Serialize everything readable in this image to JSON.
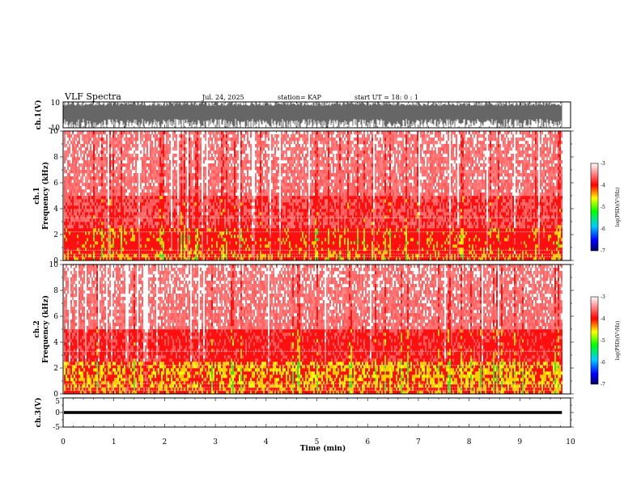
{
  "header": {
    "title": "VLF Spectra",
    "date": "Jul. 24, 2025",
    "station": "station= KAP",
    "start": "start  UT  =   18: 0  : 1"
  },
  "chart_data": [
    {
      "id": "ch1-waveform",
      "type": "line",
      "ylabel": "ch.1(V)",
      "ylim": [
        -10,
        10
      ],
      "yticks": [
        "10",
        "-10"
      ],
      "xlim": [
        0,
        10
      ],
      "data_end_min": 9.83
    },
    {
      "id": "ch1-spectrogram",
      "type": "heatmap",
      "ylabel": "ch.1\nFrequency (kHz)",
      "ylim": [
        0,
        10
      ],
      "yticks": [
        "0",
        "2",
        "4",
        "6",
        "8",
        "10"
      ],
      "xlim": [
        0,
        10
      ],
      "colorbar": {
        "label": "log(PSD)(V²/Hz)",
        "ticks": [
          "-3",
          "-4",
          "-5",
          "-6",
          "-7"
        ],
        "range": [
          -7,
          -3
        ]
      }
    },
    {
      "id": "ch2-spectrogram",
      "type": "heatmap",
      "ylabel": "ch.2\nFrequency (kHz)",
      "ylim": [
        0,
        10
      ],
      "yticks": [
        "0",
        "2",
        "4",
        "6",
        "8",
        "10"
      ],
      "xlim": [
        0,
        10
      ],
      "colorbar": {
        "label": "log(PSD)(V²/Hz)",
        "ticks": [
          "-3",
          "-4",
          "-5",
          "-6",
          "-7"
        ],
        "range": [
          -7,
          -3
        ]
      }
    },
    {
      "id": "ch3-waveform",
      "type": "line",
      "ylabel": "ch.3(V)",
      "ylim": [
        -5,
        5
      ],
      "yticks": [
        "5",
        "0",
        "-5"
      ],
      "xlim": [
        0,
        10
      ],
      "xlabel": "Time (min)",
      "xticks": [
        "0",
        "1",
        "2",
        "3",
        "4",
        "5",
        "6",
        "7",
        "8",
        "9",
        "10"
      ]
    }
  ]
}
